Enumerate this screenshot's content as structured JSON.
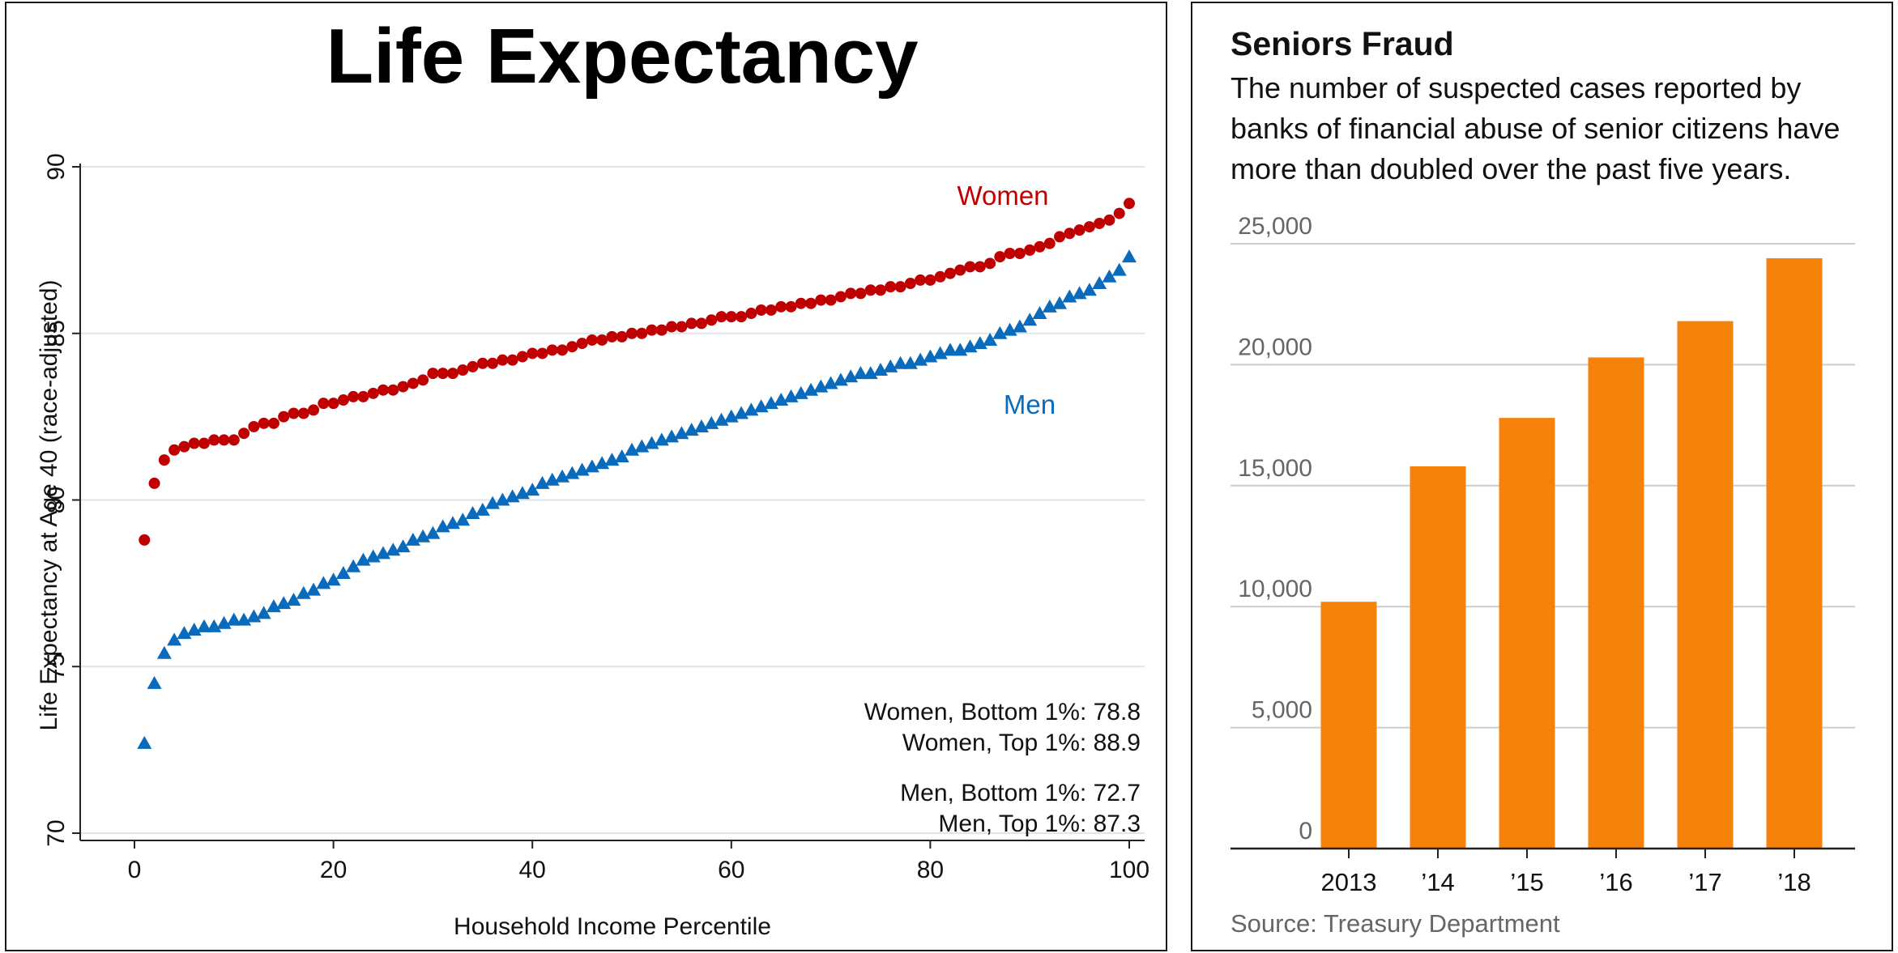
{
  "colors": {
    "women": "#c00000",
    "men": "#0a6bbd",
    "bars": "#f5820a",
    "grid": "#dbe5ea",
    "axis": "#222222",
    "text": "#111111",
    "muted": "#666666"
  },
  "left": {
    "title": "Life Expectancy",
    "women_label": "Women",
    "men_label": "Men",
    "notes": [
      "Women, Bottom 1%: 78.8",
      "Women, Top 1%: 88.9",
      "Men, Bottom 1%: 72.7",
      "Men, Top 1%: 87.3"
    ]
  },
  "right": {
    "title": "Seniors Fraud",
    "subtitle_lines": [
      "The number of suspected cases reported by",
      "banks of financial abuse of senior citizens have",
      "more than doubled over the past five years."
    ],
    "source": "Source: Treasury Department"
  },
  "chart_data": [
    {
      "type": "scatter",
      "title": "Life Expectancy",
      "xlabel": "Household Income Percentile",
      "ylabel": "Life Expectancy at Age 40 (race-adjusted)",
      "xlim": [
        0,
        100
      ],
      "ylim": [
        70,
        90
      ],
      "xticks": [
        0,
        20,
        40,
        60,
        80,
        100
      ],
      "yticks": [
        70,
        75,
        80,
        85,
        90
      ],
      "grid": "horizontal",
      "series": [
        {
          "name": "Women",
          "marker": "circle",
          "x": [
            1,
            2,
            3,
            4,
            5,
            6,
            7,
            8,
            9,
            10,
            11,
            12,
            13,
            14,
            15,
            16,
            17,
            18,
            19,
            20,
            21,
            22,
            23,
            24,
            25,
            26,
            27,
            28,
            29,
            30,
            31,
            32,
            33,
            34,
            35,
            36,
            37,
            38,
            39,
            40,
            41,
            42,
            43,
            44,
            45,
            46,
            47,
            48,
            49,
            50,
            51,
            52,
            53,
            54,
            55,
            56,
            57,
            58,
            59,
            60,
            61,
            62,
            63,
            64,
            65,
            66,
            67,
            68,
            69,
            70,
            71,
            72,
            73,
            74,
            75,
            76,
            77,
            78,
            79,
            80,
            81,
            82,
            83,
            84,
            85,
            86,
            87,
            88,
            89,
            90,
            91,
            92,
            93,
            94,
            95,
            96,
            97,
            98,
            99,
            100
          ],
          "values": [
            78.8,
            80.5,
            81.2,
            81.5,
            81.6,
            81.7,
            81.7,
            81.8,
            81.8,
            81.8,
            82.0,
            82.2,
            82.3,
            82.3,
            82.5,
            82.6,
            82.6,
            82.7,
            82.9,
            82.9,
            83.0,
            83.1,
            83.1,
            83.2,
            83.3,
            83.3,
            83.4,
            83.5,
            83.6,
            83.8,
            83.8,
            83.8,
            83.9,
            84.0,
            84.1,
            84.1,
            84.2,
            84.2,
            84.3,
            84.4,
            84.4,
            84.5,
            84.5,
            84.6,
            84.7,
            84.8,
            84.8,
            84.9,
            84.9,
            85.0,
            85.0,
            85.1,
            85.1,
            85.2,
            85.2,
            85.3,
            85.3,
            85.4,
            85.5,
            85.5,
            85.5,
            85.6,
            85.7,
            85.7,
            85.8,
            85.8,
            85.9,
            85.9,
            86.0,
            86.0,
            86.1,
            86.2,
            86.2,
            86.3,
            86.3,
            86.4,
            86.4,
            86.5,
            86.6,
            86.6,
            86.7,
            86.8,
            86.9,
            87.0,
            87.0,
            87.1,
            87.3,
            87.4,
            87.4,
            87.5,
            87.6,
            87.7,
            87.9,
            88.0,
            88.1,
            88.2,
            88.3,
            88.4,
            88.6,
            88.9
          ]
        },
        {
          "name": "Men",
          "marker": "triangle",
          "x": [
            1,
            2,
            3,
            4,
            5,
            6,
            7,
            8,
            9,
            10,
            11,
            12,
            13,
            14,
            15,
            16,
            17,
            18,
            19,
            20,
            21,
            22,
            23,
            24,
            25,
            26,
            27,
            28,
            29,
            30,
            31,
            32,
            33,
            34,
            35,
            36,
            37,
            38,
            39,
            40,
            41,
            42,
            43,
            44,
            45,
            46,
            47,
            48,
            49,
            50,
            51,
            52,
            53,
            54,
            55,
            56,
            57,
            58,
            59,
            60,
            61,
            62,
            63,
            64,
            65,
            66,
            67,
            68,
            69,
            70,
            71,
            72,
            73,
            74,
            75,
            76,
            77,
            78,
            79,
            80,
            81,
            82,
            83,
            84,
            85,
            86,
            87,
            88,
            89,
            90,
            91,
            92,
            93,
            94,
            95,
            96,
            97,
            98,
            99,
            100
          ],
          "values": [
            72.7,
            74.5,
            75.4,
            75.8,
            76.0,
            76.1,
            76.2,
            76.2,
            76.3,
            76.4,
            76.4,
            76.5,
            76.6,
            76.8,
            76.9,
            77.0,
            77.2,
            77.3,
            77.5,
            77.6,
            77.8,
            78.0,
            78.2,
            78.3,
            78.4,
            78.5,
            78.6,
            78.8,
            78.9,
            79.0,
            79.2,
            79.3,
            79.4,
            79.6,
            79.7,
            79.9,
            80.0,
            80.1,
            80.2,
            80.3,
            80.5,
            80.6,
            80.7,
            80.8,
            80.9,
            81.0,
            81.1,
            81.2,
            81.3,
            81.5,
            81.6,
            81.7,
            81.8,
            81.9,
            82.0,
            82.1,
            82.2,
            82.3,
            82.4,
            82.5,
            82.6,
            82.7,
            82.8,
            82.9,
            83.0,
            83.1,
            83.2,
            83.3,
            83.4,
            83.5,
            83.6,
            83.7,
            83.8,
            83.8,
            83.9,
            84.0,
            84.1,
            84.1,
            84.2,
            84.3,
            84.4,
            84.5,
            84.5,
            84.6,
            84.7,
            84.8,
            85.0,
            85.1,
            85.2,
            85.4,
            85.6,
            85.8,
            85.9,
            86.1,
            86.2,
            86.3,
            86.5,
            86.7,
            86.9,
            87.3
          ]
        }
      ]
    },
    {
      "type": "bar",
      "title": "Seniors Fraud",
      "categories": [
        "2013",
        "’14",
        "’15",
        "’16",
        "’17",
        "’18"
      ],
      "values": [
        10200,
        15800,
        17800,
        20300,
        21800,
        24400
      ],
      "ylim": [
        0,
        25000
      ],
      "yticks": [
        0,
        5000,
        10000,
        15000,
        20000,
        25000
      ],
      "ytick_labels": [
        "0",
        "5,000",
        "10,000",
        "15,000",
        "20,000",
        "25,000"
      ],
      "grid": "horizontal"
    }
  ]
}
